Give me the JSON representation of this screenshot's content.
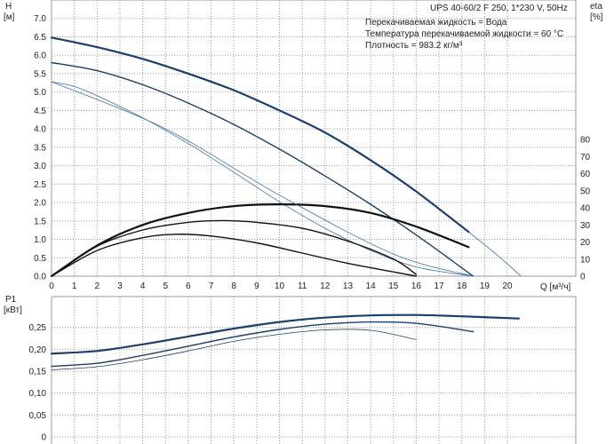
{
  "chart_data": [
    {
      "type": "line",
      "title": "UPS 40-60/2 F 250, 1*230 V, 50Hz",
      "annotations": [
        "Перекачиваемая жидкость = Вода",
        "Температура перекачиваемой жидкости = 60 °C",
        "Плотность = 983.2 кг/м³"
      ],
      "xlabel": "Q [м³/ч]",
      "ylabel": "H",
      "ylabel_unit": "[м]",
      "y2label": "eta",
      "y2label_unit": "[%]",
      "xlim": [
        0,
        23
      ],
      "ylim": [
        0,
        7.5
      ],
      "y2lim": [
        0,
        80
      ],
      "x_ticks": [
        0,
        1,
        2,
        3,
        4,
        5,
        6,
        7,
        8,
        9,
        10,
        11,
        12,
        13,
        14,
        15,
        16,
        17,
        18,
        19,
        20
      ],
      "y_ticks": [
        "0.0",
        "0.5",
        "1.0",
        "1.5",
        "2.0",
        "2.5",
        "3.0",
        "3.5",
        "4.0",
        "4.5",
        "5.0",
        "5.5",
        "6.0",
        "6.5",
        "7.0"
      ],
      "y2_ticks": [
        0,
        10,
        20,
        30,
        40,
        50,
        60,
        70,
        80
      ],
      "grid": true,
      "series": [
        {
          "axis": "H",
          "weight": "bold",
          "color": "#1a3f6e",
          "x": [
            0,
            2,
            4,
            6,
            8,
            10,
            12,
            14,
            16,
            18.3
          ],
          "y": [
            6.48,
            6.22,
            5.9,
            5.5,
            5.05,
            4.5,
            3.9,
            3.15,
            2.3,
            1.2
          ]
        },
        {
          "axis": "H",
          "weight": "thin",
          "color": "#3a6fa8",
          "x": [
            0,
            20.6
          ],
          "y": [
            0,
            0
          ],
          "x_ext": [
            18.3,
            19.5,
            20.6
          ],
          "y_ext": [
            1.2,
            0.6,
            0.0
          ]
        },
        {
          "axis": "H",
          "weight": "medium",
          "color": "#1a3f6e",
          "x": [
            0,
            2,
            4,
            6,
            8,
            10,
            12,
            14,
            16,
            18.5
          ],
          "y": [
            5.8,
            5.58,
            5.2,
            4.7,
            4.12,
            3.45,
            2.72,
            1.95,
            1.12,
            0.0
          ]
        },
        {
          "axis": "H",
          "weight": "thin",
          "color": "#3a6fa8",
          "x": [
            0,
            1,
            2,
            4,
            6,
            8,
            10,
            12,
            14,
            16,
            18.5
          ],
          "y": [
            5.28,
            5.15,
            4.9,
            4.3,
            3.6,
            2.82,
            2.02,
            1.3,
            0.7,
            0.25,
            0.0
          ]
        },
        {
          "axis": "eta",
          "weight": "bold",
          "color": "#111111",
          "x": [
            0,
            2,
            4,
            6,
            8,
            10,
            12,
            14,
            16,
            18.3
          ],
          "y": [
            0,
            18,
            30,
            37,
            41,
            42,
            41,
            37,
            29,
            17
          ]
        },
        {
          "axis": "eta",
          "weight": "medium",
          "color": "#111111",
          "x": [
            0,
            2,
            4,
            6,
            7.5,
            9,
            11,
            13,
            15,
            16
          ],
          "y": [
            0,
            17.5,
            27,
            31.5,
            32.5,
            31.5,
            28,
            20.5,
            10,
            1
          ]
        },
        {
          "axis": "eta",
          "weight": "medium",
          "color": "#111111",
          "x": [
            0,
            2,
            4,
            5.5,
            7,
            9,
            11,
            13,
            15,
            16
          ],
          "y": [
            0,
            15,
            22.5,
            24.5,
            23.5,
            19.5,
            13.5,
            7.5,
            2.5,
            0
          ]
        },
        {
          "axis": "H",
          "weight": "thin",
          "color": "#3a6fa8",
          "x": [
            0,
            5,
            10,
            15,
            18.5
          ],
          "y": [
            5.28,
            4.0,
            2.2,
            0.6,
            0.0
          ]
        }
      ]
    },
    {
      "type": "line",
      "ylabel": "P1",
      "ylabel_unit": "[кВт]",
      "xlim": [
        0,
        23
      ],
      "ylim": [
        0,
        0.32
      ],
      "y_ticks": [
        "0",
        "0,05",
        "0,10",
        "0,15",
        "0,20",
        "0,25"
      ],
      "grid": true,
      "series": [
        {
          "weight": "bold",
          "color": "#1a3f6e",
          "x": [
            0,
            2,
            4,
            6,
            8,
            10,
            12,
            14,
            16,
            18,
            20.5
          ],
          "y": [
            0.19,
            0.196,
            0.211,
            0.229,
            0.247,
            0.262,
            0.272,
            0.277,
            0.278,
            0.275,
            0.27
          ]
        },
        {
          "weight": "medium",
          "color": "#1a3f6e",
          "x": [
            0,
            2,
            4,
            6,
            8,
            10,
            12,
            14,
            16,
            18.5
          ],
          "y": [
            0.161,
            0.168,
            0.186,
            0.207,
            0.228,
            0.245,
            0.257,
            0.262,
            0.259,
            0.24
          ]
        },
        {
          "weight": "thin",
          "color": "#1a3f6e",
          "x": [
            0,
            2,
            4,
            6,
            8,
            10,
            12,
            14,
            16
          ],
          "y": [
            0.153,
            0.16,
            0.176,
            0.196,
            0.218,
            0.234,
            0.244,
            0.243,
            0.222
          ]
        }
      ]
    }
  ]
}
